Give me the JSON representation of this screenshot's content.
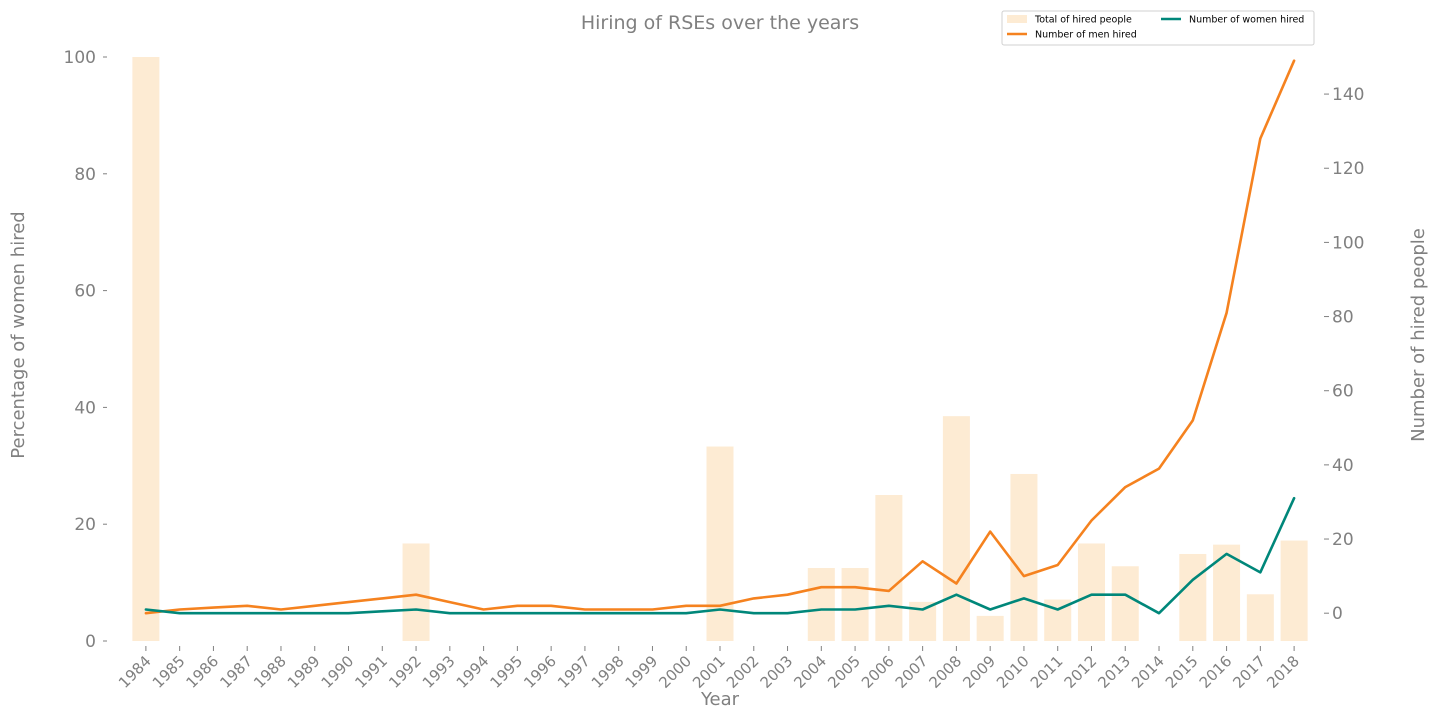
{
  "chart_data": {
    "type": "bar+line",
    "title": "Hiring of RSEs over the years",
    "xlabel": "Year",
    "ylabel_left": "Percentage of women hired",
    "ylabel_right": "Number of hired people",
    "ylim_left": [
      0,
      100
    ],
    "ylim_right": [
      -7.5,
      150
    ],
    "yticks_left": [
      0,
      20,
      40,
      60,
      80,
      100
    ],
    "yticks_right": [
      0,
      20,
      40,
      60,
      80,
      100,
      120,
      140
    ],
    "grid": false,
    "legend_position": "top-right",
    "categories": [
      "1984",
      "1985",
      "1986",
      "1987",
      "1988",
      "1989",
      "1990",
      "1991",
      "1992",
      "1993",
      "1994",
      "1995",
      "1996",
      "1997",
      "1998",
      "1999",
      "2000",
      "2001",
      "2002",
      "2003",
      "2004",
      "2005",
      "2006",
      "2007",
      "2008",
      "2009",
      "2010",
      "2011",
      "2012",
      "2013",
      "2014",
      "2015",
      "2016",
      "2017",
      "2018"
    ],
    "series": [
      {
        "name": "Total of hired people",
        "kind": "bar",
        "axis": "left",
        "color": "#fdebd3",
        "values": [
          100,
          0,
          0,
          0,
          0,
          0,
          0,
          0,
          16.7,
          0,
          0,
          0,
          0,
          0,
          0,
          0,
          0,
          33.3,
          0,
          0,
          12.5,
          12.5,
          25,
          6.7,
          38.5,
          4.3,
          28.6,
          7.1,
          16.7,
          12.8,
          0,
          14.9,
          16.5,
          8,
          17.2
        ]
      },
      {
        "name": "Number of men hired",
        "kind": "line",
        "axis": "right",
        "color": "#f5821f",
        "values": [
          0,
          1,
          1.5,
          2,
          1,
          2,
          3,
          4,
          5,
          3,
          1,
          2,
          2,
          1,
          1,
          1,
          2,
          2,
          4,
          5,
          7,
          7,
          6,
          14,
          8,
          22,
          10,
          13,
          25,
          34,
          39,
          52,
          81,
          128,
          149
        ]
      },
      {
        "name": "Number of women hired",
        "kind": "line",
        "axis": "right",
        "color": "#00877a",
        "values": [
          1,
          0,
          0,
          0,
          0,
          0,
          0,
          0.5,
          1,
          0,
          0,
          0,
          0,
          0,
          0,
          0,
          0,
          1,
          0,
          0,
          1,
          1,
          2,
          1,
          5,
          1,
          4,
          1,
          5,
          5,
          0,
          9,
          16,
          11,
          31
        ]
      }
    ]
  }
}
